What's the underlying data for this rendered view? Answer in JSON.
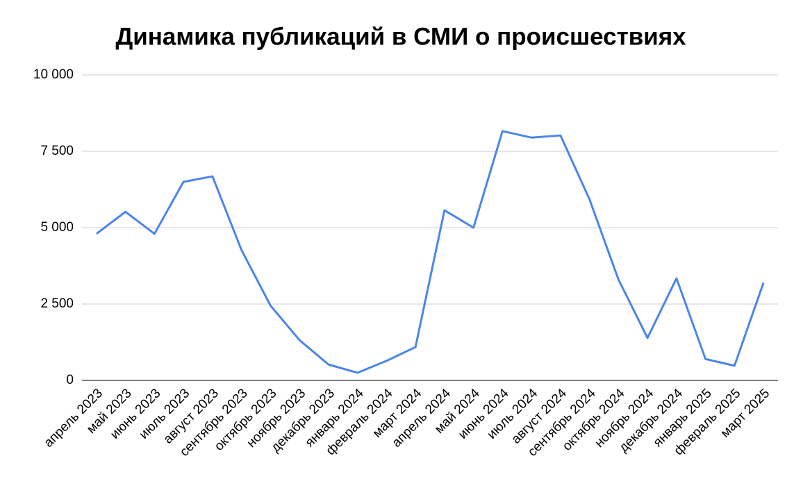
{
  "chart_data": {
    "type": "line",
    "title": "Динамика публикаций в СМИ о происшествиях",
    "categories": [
      "апрель 2023",
      "май 2023",
      "июнь 2023",
      "июль 2023",
      "август 2023",
      "сентябрь 2023",
      "октябрь 2023",
      "ноябрь 2023",
      "декабрь 2023",
      "январь 2024",
      "февраль 2024",
      "март 2024",
      "апрель 2024",
      "май 2024",
      "июнь 2024",
      "июль 2024",
      "август 2024",
      "сентябрь 2024",
      "октябрь 2024",
      "ноябрь 2024",
      "декабрь 2024",
      "январь 2025",
      "февраль 2025",
      "март 2025"
    ],
    "values": [
      4800,
      5520,
      4800,
      6500,
      6680,
      4270,
      2450,
      1320,
      520,
      250,
      640,
      1090,
      5570,
      5000,
      8160,
      7950,
      8020,
      5930,
      3300,
      1390,
      3340,
      700,
      480,
      3200
    ],
    "color": "#4a86e8",
    "ylim": [
      0,
      10000
    ],
    "yticks": [
      0,
      {
        "value": 2500,
        "label": "2 500"
      },
      {
        "value": 5000,
        "label": "5 000"
      },
      {
        "value": 7500,
        "label": "7 500"
      },
      {
        "value": 10000,
        "label": "10 000"
      }
    ],
    "grid": true
  }
}
